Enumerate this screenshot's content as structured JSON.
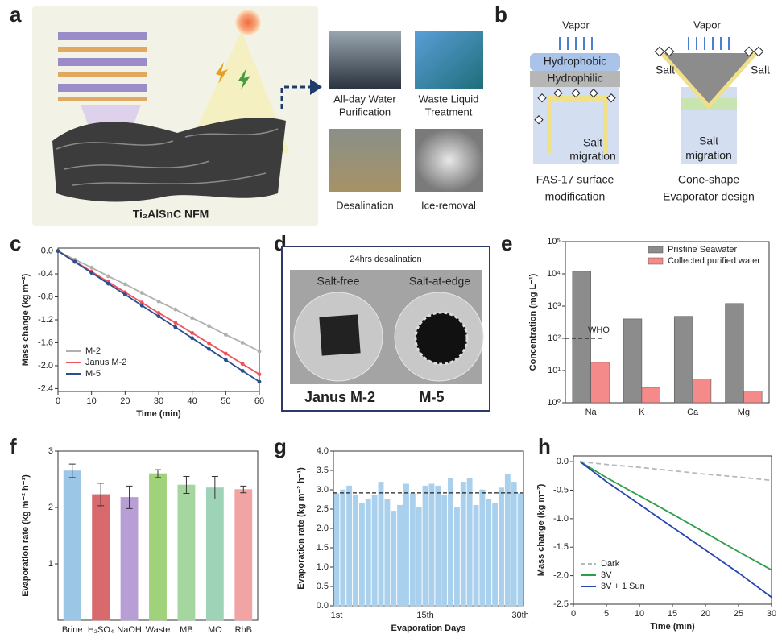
{
  "panel_a": {
    "label": "a",
    "material": "Ti₂AlSnC NFM",
    "applications": [
      [
        "All-day Water",
        "Purification"
      ],
      [
        "Waste Liquid",
        "Treatment"
      ],
      [
        "Desalination"
      ],
      [
        "Ice-removal"
      ]
    ]
  },
  "panel_b": {
    "label": "b",
    "left": {
      "vapor": "Vapor",
      "top_layer": "Hydrophobic",
      "bottom_layer": "Hydrophilic",
      "migration": [
        "Salt",
        "migration"
      ],
      "caption": [
        "FAS-17 surface",
        "modification"
      ]
    },
    "right": {
      "vapor": "Vapor",
      "salt_left": "Salt",
      "salt_right": "Salt",
      "migration": [
        "Salt",
        "migration"
      ],
      "caption": [
        "Cone-shape",
        "Evaporator design"
      ]
    }
  },
  "panel_d": {
    "label": "d",
    "title": "24hrs desalination",
    "left": {
      "state": "Salt-free",
      "sample": "Janus M-2"
    },
    "right": {
      "state": "Salt-at-edge",
      "sample": "M-5"
    }
  },
  "chart_data": [
    {
      "type": "line",
      "label": "c",
      "xlabel": "Time (min)",
      "ylabel": "Mass change (kg m⁻²)",
      "x": [
        0,
        5,
        10,
        15,
        20,
        25,
        30,
        35,
        40,
        45,
        50,
        55,
        60
      ],
      "xlim": [
        0,
        60
      ],
      "xticks": [
        0,
        10,
        20,
        30,
        40,
        50,
        60
      ],
      "ylim": [
        -2.45,
        0.05
      ],
      "yticks": [
        {
          "value": 0,
          "label": "0.0"
        },
        -0.4,
        {
          "value": -0.8,
          "label": "-0.8"
        },
        {
          "value": -1.2,
          "label": "-1.2"
        },
        {
          "value": -1.6,
          "label": "-1.6"
        },
        {
          "value": -2,
          "label": "-2.0"
        },
        -2.4
      ],
      "markers": true,
      "legend": "lower left",
      "series": [
        {
          "name": "M-2",
          "color": "#b0b0b0",
          "values": [
            0,
            -0.15,
            -0.29,
            -0.44,
            -0.58,
            -0.73,
            -0.88,
            -1.02,
            -1.17,
            -1.31,
            -1.46,
            -1.6,
            -1.75
          ]
        },
        {
          "name": "Janus M-2",
          "color": "#f0525a",
          "values": [
            0,
            -0.18,
            -0.36,
            -0.54,
            -0.72,
            -0.9,
            -1.08,
            -1.25,
            -1.43,
            -1.61,
            -1.79,
            -1.97,
            -2.15
          ]
        },
        {
          "name": "M-5",
          "color": "#2b4f8e",
          "values": [
            0,
            -0.19,
            -0.38,
            -0.57,
            -0.76,
            -0.95,
            -1.14,
            -1.33,
            -1.52,
            -1.71,
            -1.9,
            -2.09,
            -2.28
          ]
        }
      ]
    },
    {
      "type": "bar",
      "label": "e",
      "ylabel": "Concentration (mg L⁻¹)",
      "log_y": true,
      "categories": [
        "Na",
        "K",
        "Ca",
        "Mg"
      ],
      "ylim": [
        1,
        100000
      ],
      "yticks": [
        {
          "value": 1,
          "label": "10⁰"
        },
        {
          "value": 10,
          "label": "10¹"
        },
        {
          "value": 100,
          "label": "10²"
        },
        {
          "value": 1000,
          "label": "10³"
        },
        {
          "value": 10000,
          "label": "10⁴"
        },
        {
          "value": 100000,
          "label": "10⁵"
        }
      ],
      "reference_line": {
        "value": 100,
        "label": "WHO"
      },
      "legend": "upper right",
      "series": [
        {
          "name": "Pristine Seawater",
          "color": "#8c8c8c",
          "values": [
            12000,
            400,
            480,
            1200
          ]
        },
        {
          "name": "Collected purified water",
          "color": "#f48a8a",
          "values": [
            18,
            3,
            5.5,
            2.3
          ]
        }
      ]
    },
    {
      "type": "bar",
      "label": "f",
      "ylabel": "Evaporation rate (kg m⁻² h⁻¹)",
      "categories": [
        "Brine",
        "H₂SO₄",
        "NaOH",
        "Waste",
        "MB",
        "MO",
        "RhB"
      ],
      "values": [
        2.65,
        2.23,
        2.18,
        2.6,
        2.4,
        2.35,
        2.32
      ],
      "errors": [
        0.12,
        0.2,
        0.2,
        0.07,
        0.15,
        0.2,
        0.06
      ],
      "colors": [
        "#9cc6e6",
        "#d8696c",
        "#b79fd6",
        "#9fd27a",
        "#a6d6a0",
        "#9fd3b8",
        "#f2a3a3"
      ],
      "ylim": [
        0,
        3
      ],
      "yticks": [
        1,
        2,
        3
      ]
    },
    {
      "type": "bar",
      "label": "g",
      "xlabel": "Evaporation Days",
      "ylabel": "Evaporation rate (kg m⁻² h⁻¹)",
      "categories": [
        "1st",
        null,
        null,
        null,
        null,
        null,
        null,
        null,
        null,
        null,
        null,
        null,
        null,
        null,
        "15th",
        null,
        null,
        null,
        null,
        null,
        null,
        null,
        null,
        null,
        null,
        null,
        null,
        null,
        null,
        "30th"
      ],
      "values": [
        2.9,
        3.0,
        3.1,
        2.85,
        2.65,
        2.75,
        2.85,
        3.2,
        2.75,
        2.45,
        2.6,
        3.15,
        2.9,
        2.55,
        3.1,
        3.15,
        3.1,
        2.85,
        3.3,
        2.55,
        3.2,
        3.3,
        2.6,
        3.0,
        2.75,
        2.65,
        3.05,
        3.4,
        3.2,
        2.9
      ],
      "color": "#a9d0ec",
      "ylim": [
        0,
        4
      ],
      "yticks": [
        {
          "value": 0,
          "label": "0.0"
        },
        0.5,
        {
          "value": 1,
          "label": "1.0"
        },
        1.5,
        {
          "value": 2,
          "label": "2.0"
        },
        2.5,
        {
          "value": 3,
          "label": "3.0"
        },
        3.5,
        {
          "value": 4,
          "label": "4.0"
        }
      ],
      "reference_line": {
        "value": 2.92
      }
    },
    {
      "type": "line",
      "label": "h",
      "xlabel": "Time (min)",
      "ylabel": "Mass change (kg m⁻²)",
      "x": [
        1,
        5,
        10,
        15,
        20,
        25,
        30
      ],
      "xlim": [
        0,
        30
      ],
      "xticks": [
        0,
        5,
        10,
        15,
        20,
        25,
        30
      ],
      "ylim": [
        -2.5,
        0.1
      ],
      "yticks": [
        {
          "value": 0,
          "label": "0.0"
        },
        -0.5,
        {
          "value": -1,
          "label": "-1.0"
        },
        -1.5,
        {
          "value": -2,
          "label": "-2.0"
        },
        -2.5
      ],
      "legend": "lower left",
      "series": [
        {
          "name": "Dark",
          "color": "#b8b8b8",
          "dash": true,
          "values": [
            0,
            -0.05,
            -0.1,
            -0.16,
            -0.22,
            -0.27,
            -0.33
          ]
        },
        {
          "name": "3V",
          "color": "#2e9e4a",
          "values": [
            0,
            -0.28,
            -0.6,
            -0.92,
            -1.25,
            -1.58,
            -1.9
          ]
        },
        {
          "name": "3V + 1 Sun",
          "color": "#2446b0",
          "values": [
            0,
            -0.35,
            -0.75,
            -1.15,
            -1.55,
            -1.95,
            -2.38
          ]
        }
      ]
    }
  ]
}
